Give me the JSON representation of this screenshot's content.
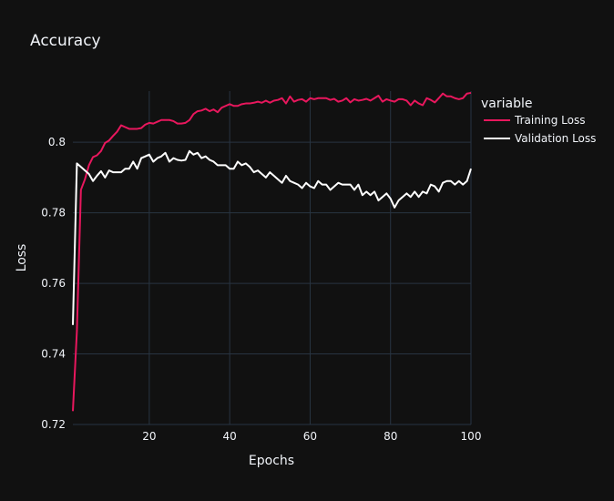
{
  "chart_data": {
    "type": "line",
    "title": "Accuracy",
    "xlabel": "Epochs",
    "ylabel": "Loss",
    "xlim": [
      1,
      100
    ],
    "ylim": [
      0.72,
      0.8145
    ],
    "xticks": [
      20,
      40,
      60,
      80,
      100
    ],
    "xtick_labels": [
      "20",
      "40",
      "60",
      "80",
      "100"
    ],
    "yticks": [
      0.72,
      0.74,
      0.76,
      0.78,
      0.8
    ],
    "ytick_labels": [
      "0.72",
      "0.74",
      "0.76",
      "0.78",
      "0.8"
    ],
    "grid": true,
    "legend": {
      "title": "variable",
      "placement": "top-right"
    },
    "colors": {
      "background": "#111111",
      "grid": "#283442",
      "text": "#f2f5fa"
    },
    "series": [
      {
        "name": "Training Loss",
        "color": "#e8175d",
        "values": [
          0.7238,
          0.7465,
          0.7865,
          0.7895,
          0.7935,
          0.7958,
          0.7963,
          0.7975,
          0.7998,
          0.8005,
          0.8018,
          0.803,
          0.8048,
          0.8043,
          0.8038,
          0.8038,
          0.8038,
          0.804,
          0.805,
          0.8055,
          0.8053,
          0.8058,
          0.8063,
          0.8063,
          0.8063,
          0.806,
          0.8053,
          0.8053,
          0.8055,
          0.8063,
          0.808,
          0.8088,
          0.809,
          0.8095,
          0.8088,
          0.8093,
          0.8085,
          0.8098,
          0.8103,
          0.8108,
          0.8103,
          0.8103,
          0.8108,
          0.811,
          0.811,
          0.8112,
          0.8115,
          0.8112,
          0.8118,
          0.8112,
          0.8118,
          0.812,
          0.8125,
          0.811,
          0.813,
          0.8115,
          0.812,
          0.8122,
          0.8115,
          0.8125,
          0.8122,
          0.8125,
          0.8125,
          0.8125,
          0.812,
          0.8123,
          0.8115,
          0.8118,
          0.8125,
          0.8113,
          0.8122,
          0.8118,
          0.812,
          0.8123,
          0.8118,
          0.8125,
          0.8132,
          0.8115,
          0.8122,
          0.8118,
          0.8115,
          0.8122,
          0.8122,
          0.8118,
          0.8105,
          0.8118,
          0.811,
          0.8105,
          0.8125,
          0.812,
          0.8113,
          0.8125,
          0.8138,
          0.813,
          0.813,
          0.8125,
          0.8122,
          0.8125,
          0.8138,
          0.814
        ]
      },
      {
        "name": "Validation Loss",
        "color": "#ffffff",
        "values": [
          0.7482,
          0.794,
          0.793,
          0.792,
          0.791,
          0.789,
          0.7905,
          0.7918,
          0.79,
          0.792,
          0.7915,
          0.7915,
          0.7915,
          0.7925,
          0.7925,
          0.7945,
          0.7925,
          0.7955,
          0.796,
          0.7965,
          0.7945,
          0.7955,
          0.796,
          0.797,
          0.7945,
          0.7955,
          0.795,
          0.7948,
          0.795,
          0.7975,
          0.7965,
          0.797,
          0.7955,
          0.796,
          0.795,
          0.7945,
          0.7935,
          0.7935,
          0.7935,
          0.7925,
          0.7925,
          0.7945,
          0.7935,
          0.794,
          0.793,
          0.7915,
          0.792,
          0.791,
          0.79,
          0.7915,
          0.7905,
          0.7895,
          0.7885,
          0.7905,
          0.789,
          0.7885,
          0.788,
          0.787,
          0.7885,
          0.7875,
          0.787,
          0.789,
          0.788,
          0.788,
          0.7865,
          0.7875,
          0.7885,
          0.788,
          0.788,
          0.788,
          0.7865,
          0.788,
          0.785,
          0.786,
          0.785,
          0.786,
          0.7835,
          0.7845,
          0.7855,
          0.784,
          0.7815,
          0.7835,
          0.7845,
          0.7855,
          0.7845,
          0.786,
          0.7845,
          0.786,
          0.7855,
          0.788,
          0.7875,
          0.786,
          0.7885,
          0.789,
          0.789,
          0.788,
          0.789,
          0.788,
          0.789,
          0.7925
        ]
      }
    ]
  }
}
